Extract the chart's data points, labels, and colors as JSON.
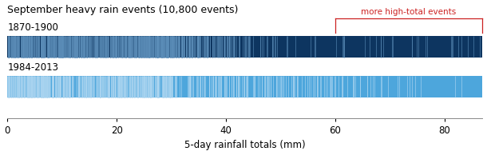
{
  "title": "September heavy rain events (10,800 events)",
  "xlabel": "5-day rainfall totals (mm)",
  "label1": "1870-1900",
  "label2": "1984-2013",
  "bar1_bg_color": "#0d3560",
  "bar2_bg_color": "#4da6dc",
  "line1_color": "#5b8db8",
  "line2_color": "#aad4f0",
  "annotation_text": "more high-total events",
  "annotation_color": "#cc2222",
  "xlim": [
    0,
    87
  ],
  "xticks": [
    0,
    20,
    40,
    60,
    80
  ],
  "figsize": [
    6.1,
    1.94
  ],
  "dpi": 100
}
